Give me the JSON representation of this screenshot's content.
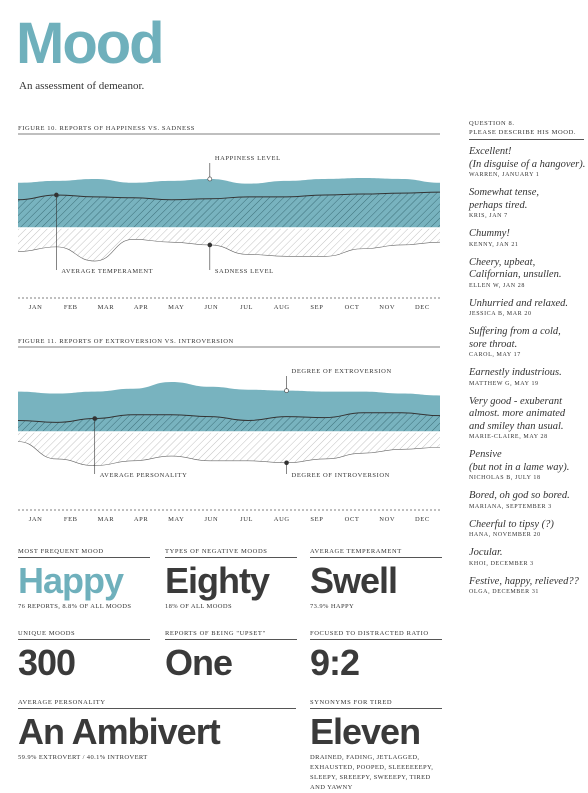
{
  "header": {
    "title": "Mood",
    "subtitle": "An assessment of demeanor."
  },
  "chart_data": [
    {
      "type": "area",
      "title": "FIGURE 10. REPORTS OF HAPPINESS VS. SADNESS",
      "categories": [
        "JAN",
        "FEB",
        "MAR",
        "APR",
        "MAY",
        "JUN",
        "JUL",
        "AUG",
        "SEP",
        "OCT",
        "NOV",
        "DEC"
      ],
      "series": [
        {
          "name": "HAPPINESS LEVEL",
          "color": "#78b3bf",
          "values": [
            48,
            50,
            52,
            48,
            50,
            52,
            47,
            50,
            52,
            53,
            52,
            48
          ]
        },
        {
          "name": "AVERAGE TEMPERAMENT",
          "color": "#333333",
          "values": [
            30,
            35,
            33,
            32,
            30,
            31,
            33,
            33,
            35,
            36,
            37,
            38
          ]
        },
        {
          "name": "SADNESS LEVEL",
          "color": "#9a9a9a",
          "values": [
            -25,
            -20,
            -35,
            -12,
            -15,
            -18,
            -28,
            -30,
            -30,
            -22,
            -18,
            -15
          ]
        }
      ]
    },
    {
      "type": "area",
      "title": "FIGURE 11. REPORTS OF EXTROVERSION VS. INTROVERSION",
      "categories": [
        "JAN",
        "FEB",
        "MAR",
        "APR",
        "MAY",
        "JUN",
        "JUL",
        "AUG",
        "SEP",
        "OCT",
        "NOV",
        "DEC"
      ],
      "series": [
        {
          "name": "DEGREE OF EXTROVERSION",
          "color": "#78b3bf",
          "values": [
            42,
            40,
            42,
            45,
            52,
            47,
            44,
            43,
            42,
            42,
            40,
            38
          ]
        },
        {
          "name": "AVERAGE PERSONALITY",
          "color": "#333333",
          "values": [
            12,
            10,
            14,
            18,
            18,
            16,
            12,
            16,
            15,
            20,
            20,
            17
          ]
        },
        {
          "name": "DEGREE OF INTROVERSION",
          "color": "#9a9a9a",
          "values": [
            -10,
            -28,
            -35,
            -30,
            -25,
            -30,
            -30,
            -32,
            -28,
            -22,
            -18,
            -16
          ]
        }
      ]
    }
  ],
  "stats": [
    {
      "label": "MOST FREQUENT MOOD",
      "value": "Happy",
      "note": "76 REPORTS, 8.8% OF ALL MOODS"
    },
    {
      "label": "TYPES OF NEGATIVE MOODS",
      "value": "Eighty",
      "note": "18% OF ALL MOODS"
    },
    {
      "label": "AVERAGE TEMPERAMENT",
      "value": "Swell",
      "note": "73.9% HAPPY"
    },
    {
      "label": "UNIQUE MOODS",
      "value": "300"
    },
    {
      "label": "REPORTS OF BEING \"UPSET\"",
      "value": "One"
    },
    {
      "label": "FOCUSED TO DISTRACTED RATIO",
      "value": "9:2"
    },
    {
      "label": "AVERAGE PERSONALITY",
      "value": "An Ambivert",
      "note": "59.9% EXTROVERT / 40.1% INTROVERT"
    },
    {
      "label": "SYNONYMS FOR TIRED",
      "value": "Eleven",
      "note": "DRAINED, FADING, JETLAGGED, EXHAUSTED, POOPED, SLEEEEEEPY, SLEEPY, SREEEPY, SWEEEPY, TIRED AND YAWNY"
    }
  ],
  "question": {
    "number": "QUESTION 8.",
    "text": "PLEASE DESCRIBE HIS MOOD."
  },
  "quotes": [
    {
      "lines": [
        "Excellent!",
        "(In disguise of a hangover)."
      ],
      "author": "WARREN, JANUARY 1"
    },
    {
      "lines": [
        "Somewhat tense,",
        "perhaps tired."
      ],
      "author": "KRIS, JAN 7"
    },
    {
      "lines": [
        "Chummy!"
      ],
      "author": "KENNY, JAN 21"
    },
    {
      "lines": [
        "Cheery, upbeat,",
        "Californian, unsullen."
      ],
      "author": "ELLEN W, JAN 28"
    },
    {
      "lines": [
        "Unhurried and relaxed."
      ],
      "author": "JESSICA B, MAR 20"
    },
    {
      "lines": [
        "Suffering from a cold,",
        "sore throat."
      ],
      "author": "CAROL, MAY 17"
    },
    {
      "lines": [
        "Earnestly industrious."
      ],
      "author": "MATTHEW G, MAY 19"
    },
    {
      "lines": [
        "Very good - exuberant",
        "almost. more animated",
        "and smiley than usual."
      ],
      "author": "MARIE-CLAIRE, MAY 28"
    },
    {
      "lines": [
        "Pensive",
        "(but not in a lame way)."
      ],
      "author": "NICHOLAS B, JULY 18"
    },
    {
      "lines": [
        "Bored, oh god so bored."
      ],
      "author": "MARIANA, SEPTEMBER 3"
    },
    {
      "lines": [
        "Cheerful to tipsy (?)"
      ],
      "author": "HANA, NOVEMBER 20"
    },
    {
      "lines": [
        "Jocular."
      ],
      "author": "KHOI, DECEMBER 3"
    },
    {
      "lines": [
        "Festive, happy, relieved??"
      ],
      "author": "OLGA, DECEMBER 31"
    }
  ]
}
